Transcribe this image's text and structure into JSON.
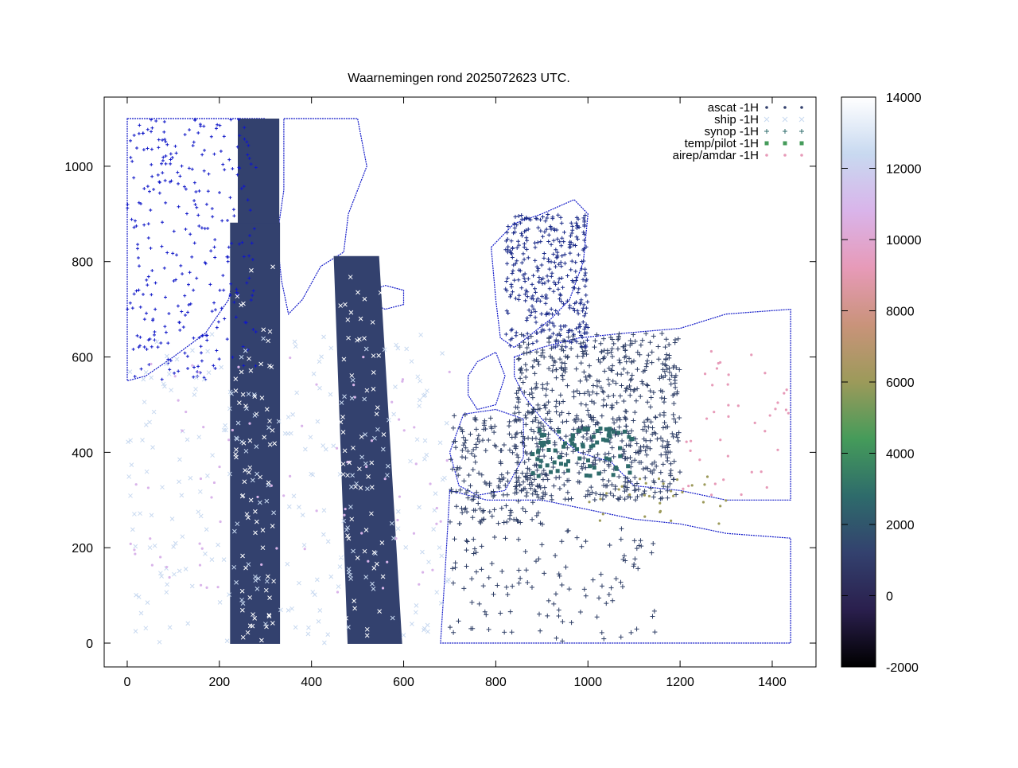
{
  "chart_data": {
    "type": "scatter",
    "title": "Waarnemingen rond 2025072623 UTC.",
    "xlabel": "",
    "ylabel": "",
    "xlim": [
      -50,
      1495
    ],
    "ylim": [
      -50,
      1145
    ],
    "x_ticks": [
      0,
      200,
      400,
      600,
      800,
      1000,
      1200,
      1400
    ],
    "y_ticks": [
      0,
      200,
      400,
      600,
      800,
      1000
    ],
    "grid": false,
    "legend_position": "top-right",
    "colorbar": {
      "min": -2000,
      "max": 14000,
      "ticks": [
        -2000,
        0,
        2000,
        4000,
        6000,
        8000,
        10000,
        12000,
        14000
      ],
      "colors": [
        "#000000",
        "#2a1f4d",
        "#33416e",
        "#2e6b6b",
        "#459b5a",
        "#9c9a5a",
        "#c9937a",
        "#e79ab8",
        "#d9b4ea",
        "#c8d9f0",
        "#ffffff"
      ]
    },
    "series": [
      {
        "name": "ascat -1H",
        "marker": "dot",
        "color": "#33416e",
        "note_points": [
          [
            230,
            0
          ],
          [
            330,
            0
          ],
          [
            460,
            0
          ],
          [
            590,
            0
          ]
        ]
      },
      {
        "name": "ship -1H",
        "marker": "x",
        "color": "#c8d9f0"
      },
      {
        "name": "synop -1H",
        "marker": "plus",
        "color": "#2e6b6b"
      },
      {
        "name": "temp/pilot -1H",
        "marker": "filled-square",
        "color": "#459b5a"
      },
      {
        "name": "airep/amdar -1H",
        "marker": "dot",
        "color": "#e79ab8"
      }
    ]
  }
}
